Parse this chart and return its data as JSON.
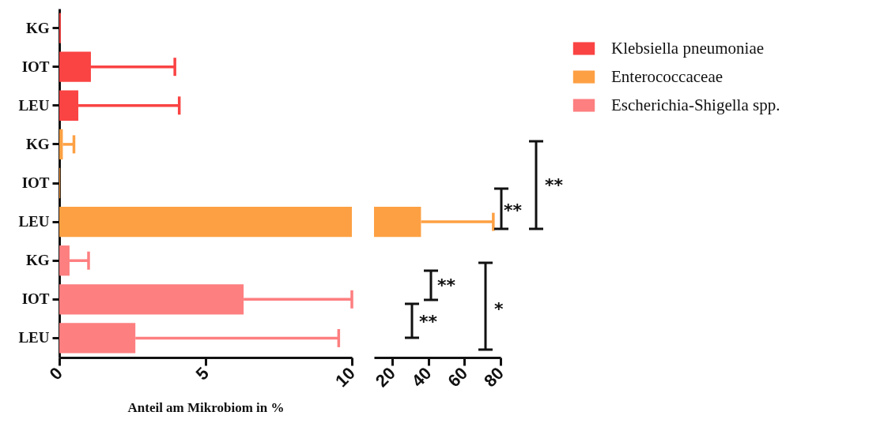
{
  "chart_data": [
    {
      "type": "bar",
      "orientation": "horizontal",
      "categories": [
        "KG",
        "IOT",
        "LEU",
        "KG",
        "IOT",
        "LEU",
        "KG",
        "IOT",
        "LEU"
      ],
      "xlabel": "Anteil am Mikrobiom in %",
      "xlim": [
        0,
        10
      ],
      "xticks": [
        0,
        5,
        10
      ],
      "legend": "top right",
      "series": [
        {
          "name": "Klebsiella pneumoniae",
          "color": "#fa4343",
          "values": [
            0.05,
            1.08,
            0.65,
            null,
            null,
            null,
            null,
            null,
            null
          ],
          "errors": [
            null,
            [
              1.08,
              3.95
            ],
            [
              0.65,
              4.1
            ],
            null,
            null,
            null,
            null,
            null,
            null
          ]
        },
        {
          "name": "Enterococcaceae",
          "color": "#fda043",
          "values": [
            null,
            null,
            null,
            0.12,
            0.03,
            10,
            null,
            null,
            null
          ],
          "errors": [
            null,
            null,
            null,
            [
              0.12,
              0.5
            ],
            null,
            null,
            null,
            null,
            null
          ]
        },
        {
          "name": "Escherichia-Shigella spp.",
          "color": "#fd7f80",
          "values": [
            null,
            null,
            null,
            null,
            null,
            null,
            0.35,
            6.3,
            2.6
          ],
          "errors": [
            null,
            null,
            null,
            null,
            null,
            null,
            [
              0.35,
              1.0
            ],
            [
              6.3,
              10
            ],
            [
              2.6,
              9.55
            ]
          ]
        }
      ]
    },
    {
      "type": "bar",
      "orientation": "horizontal",
      "categories": [
        null,
        null,
        null,
        null,
        null,
        null,
        null,
        null,
        null
      ],
      "xlim": [
        10,
        80
      ],
      "xticks": [
        20,
        40,
        60,
        80
      ],
      "tick_labels": "x",
      "annotations": [
        "**",
        "**",
        "**",
        "*",
        "**"
      ],
      "series": [
        {
          "color": "#fda043",
          "values": [
            null,
            null,
            null,
            null,
            null,
            26,
            null,
            null,
            null
          ],
          "base": [
            null,
            null,
            null,
            null,
            null,
            10,
            null,
            null,
            null
          ],
          "errors": [
            null,
            null,
            null,
            null,
            null,
            [
              36,
              76
            ],
            null,
            null,
            null
          ]
        }
      ]
    }
  ]
}
